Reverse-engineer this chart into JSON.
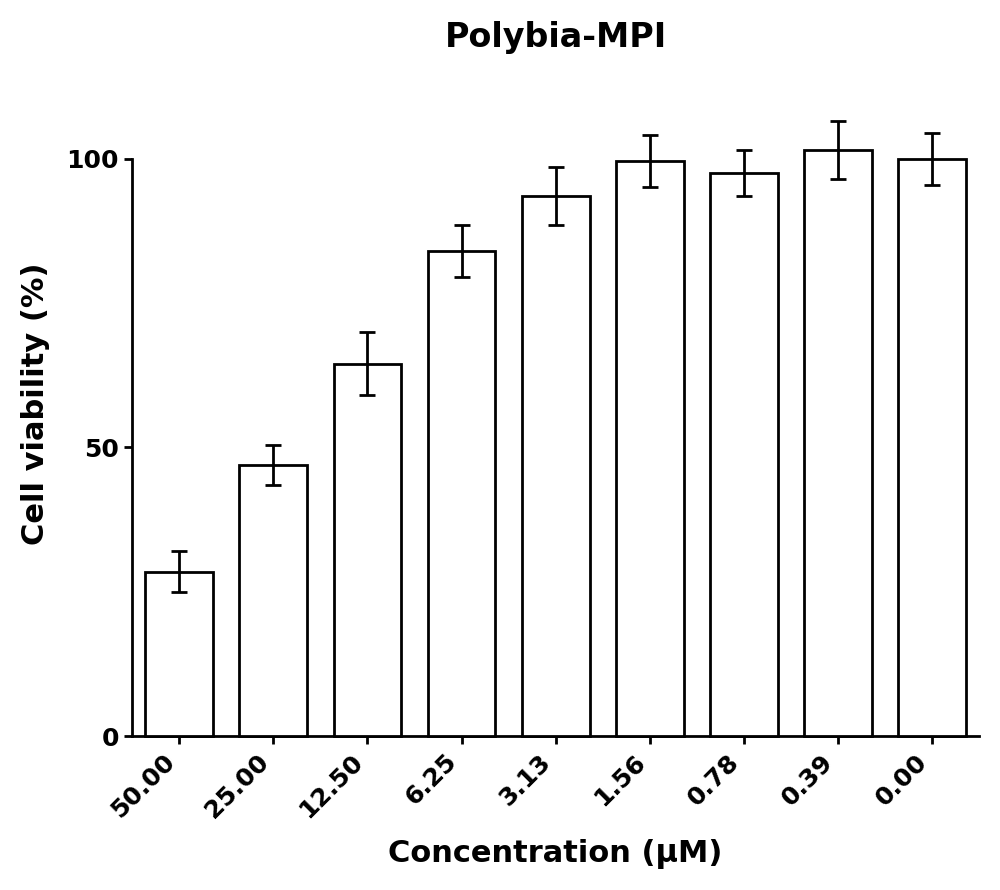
{
  "title": "Polybia-MPI",
  "xlabel": "Concentration (μM)",
  "ylabel": "Cell viability (%)",
  "categories": [
    "50.00",
    "25.00",
    "12.50",
    "6.25",
    "3.13",
    "1.56",
    "0.78",
    "0.39",
    "0.00"
  ],
  "values": [
    28.5,
    47.0,
    64.5,
    84.0,
    93.5,
    99.5,
    97.5,
    101.5,
    100.0
  ],
  "errors": [
    3.5,
    3.5,
    5.5,
    4.5,
    5.0,
    4.5,
    4.0,
    5.0,
    4.5
  ],
  "bar_color": "#ffffff",
  "bar_edgecolor": "#000000",
  "ylim": [
    0,
    115
  ],
  "yticks": [
    0,
    50,
    100
  ],
  "background_color": "#ffffff",
  "title_fontsize": 24,
  "label_fontsize": 22,
  "tick_fontsize": 18,
  "bar_linewidth": 2.0,
  "axis_linewidth": 2.0,
  "error_capsize": 6,
  "error_linewidth": 2.0,
  "bar_width": 0.72
}
